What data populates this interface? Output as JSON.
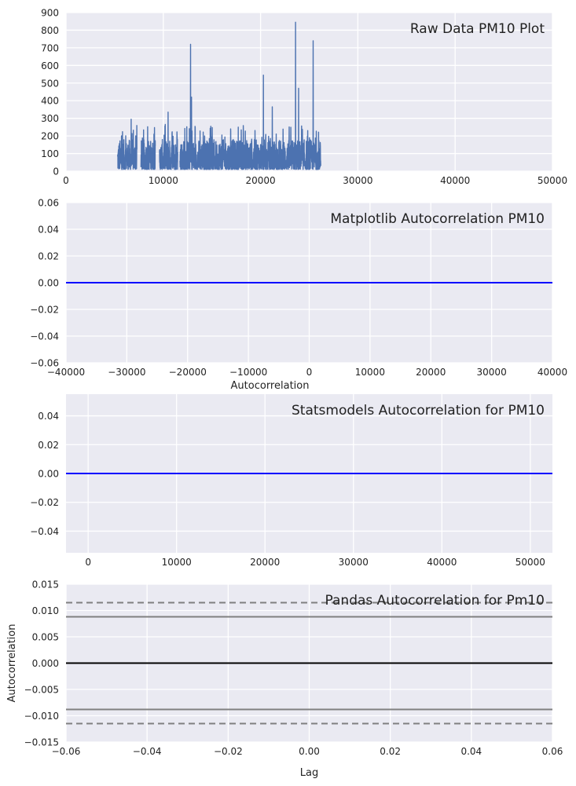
{
  "chart_data": [
    {
      "type": "line",
      "title": "Raw Data PM10 Plot",
      "xlabel": "",
      "ylabel": "",
      "xlim": [
        0,
        50000
      ],
      "ylim": [
        0,
        900
      ],
      "xticks": [
        "0",
        "10000",
        "20000",
        "30000",
        "40000",
        "50000"
      ],
      "yticks": [
        "0",
        "100",
        "200",
        "300",
        "400",
        "500",
        "600",
        "700",
        "800",
        "900"
      ],
      "grid": true,
      "series": [
        {
          "color": "#4c72b0",
          "x_range": [
            5300,
            26200
          ],
          "typical_range": [
            10,
            180
          ],
          "notes": "dense noisy time series with gaps",
          "spikes": [
            {
              "x": 6700,
              "y": 295
            },
            {
              "x": 10200,
              "y": 265
            },
            {
              "x": 10500,
              "y": 335
            },
            {
              "x": 12800,
              "y": 720
            },
            {
              "x": 12900,
              "y": 420
            },
            {
              "x": 20300,
              "y": 545
            },
            {
              "x": 21200,
              "y": 365
            },
            {
              "x": 23600,
              "y": 845
            },
            {
              "x": 23900,
              "y": 470
            },
            {
              "x": 25400,
              "y": 740
            }
          ]
        }
      ]
    },
    {
      "type": "line",
      "title": "Matplotlib Autocorrelation PM10",
      "xlabel": "Autocorrelation",
      "ylabel": "",
      "xlim": [
        -40000,
        40000
      ],
      "ylim": [
        -0.06,
        0.06
      ],
      "xticks": [
        "−40000",
        "−30000",
        "−20000",
        "−10000",
        "0",
        "10000",
        "20000",
        "30000",
        "40000"
      ],
      "yticks": [
        "0.06",
        "0.04",
        "0.02",
        "0.00",
        "−0.02",
        "−0.04",
        "−0.06"
      ],
      "grid": true,
      "series": [
        {
          "color": "#0000ff",
          "x": [
            -40000,
            40000
          ],
          "y": [
            0,
            0
          ]
        }
      ]
    },
    {
      "type": "line",
      "title": "Statsmodels Autocorrelation for PM10",
      "xlabel": "",
      "ylabel": "",
      "xlim": [
        -2500,
        52500
      ],
      "ylim": [
        -0.055,
        0.055
      ],
      "xticks": [
        "0",
        "10000",
        "20000",
        "30000",
        "40000",
        "50000"
      ],
      "yticks": [
        "0.04",
        "0.02",
        "0.00",
        "−0.02",
        "−0.04"
      ],
      "grid": true,
      "series": [
        {
          "color": "#0000ff",
          "x": [
            -2500,
            52500
          ],
          "y": [
            0,
            0
          ]
        }
      ]
    },
    {
      "type": "line",
      "title": "Pandas Autocorrelation for Pm10",
      "xlabel": "Lag",
      "ylabel": "Autocorrelation",
      "xlim": [
        -0.06,
        0.06
      ],
      "ylim": [
        -0.015,
        0.015
      ],
      "xticks": [
        "−0.06",
        "−0.04",
        "−0.02",
        "0.00",
        "0.02",
        "0.04",
        "0.06"
      ],
      "yticks": [
        "0.015",
        "0.010",
        "0.005",
        "0.000",
        "−0.005",
        "−0.010",
        "−0.015"
      ],
      "grid": true,
      "hlines": [
        {
          "y": 0.0115,
          "color": "#808080",
          "style": "dashed"
        },
        {
          "y": 0.0088,
          "color": "#808080",
          "style": "solid"
        },
        {
          "y": 0.0,
          "color": "#000000",
          "style": "solid"
        },
        {
          "y": -0.0088,
          "color": "#808080",
          "style": "solid"
        },
        {
          "y": -0.0115,
          "color": "#808080",
          "style": "dashed"
        }
      ]
    }
  ]
}
